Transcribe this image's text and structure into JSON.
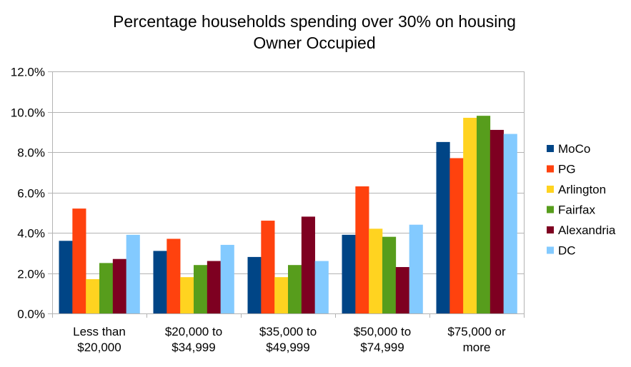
{
  "chart_data": {
    "type": "bar",
    "title": "Percentage households spending over 30% on housing",
    "subtitle": "Owner Occupied",
    "xlabel": "",
    "ylabel": "",
    "ylim": [
      0,
      12
    ],
    "yticks": [
      "0.0%",
      "2.0%",
      "4.0%",
      "6.0%",
      "8.0%",
      "10.0%",
      "12.0%"
    ],
    "grid": true,
    "legend_position": "right",
    "categories": [
      [
        "Less than",
        "$20,000"
      ],
      [
        "$20,000 to",
        "$34,999"
      ],
      [
        "$35,000 to",
        "$49,999"
      ],
      [
        "$50,000 to",
        "$74,999"
      ],
      [
        "$75,000 or",
        "more"
      ]
    ],
    "series": [
      {
        "name": "MoCo",
        "color": "#004586",
        "values": [
          3.6,
          3.1,
          2.8,
          3.9,
          8.5
        ]
      },
      {
        "name": "PG",
        "color": "#ff420e",
        "values": [
          5.2,
          3.7,
          4.6,
          6.3,
          7.7
        ]
      },
      {
        "name": "Arlington",
        "color": "#ffd320",
        "values": [
          1.7,
          1.8,
          1.8,
          4.2,
          9.7
        ]
      },
      {
        "name": "Fairfax",
        "color": "#579d1c",
        "values": [
          2.5,
          2.4,
          2.4,
          3.8,
          9.8
        ]
      },
      {
        "name": "Alexandria",
        "color": "#7e0021",
        "values": [
          2.7,
          2.6,
          4.8,
          2.3,
          9.1
        ]
      },
      {
        "name": "DC",
        "color": "#83caff",
        "values": [
          3.9,
          3.4,
          2.6,
          4.4,
          8.9
        ]
      }
    ]
  }
}
